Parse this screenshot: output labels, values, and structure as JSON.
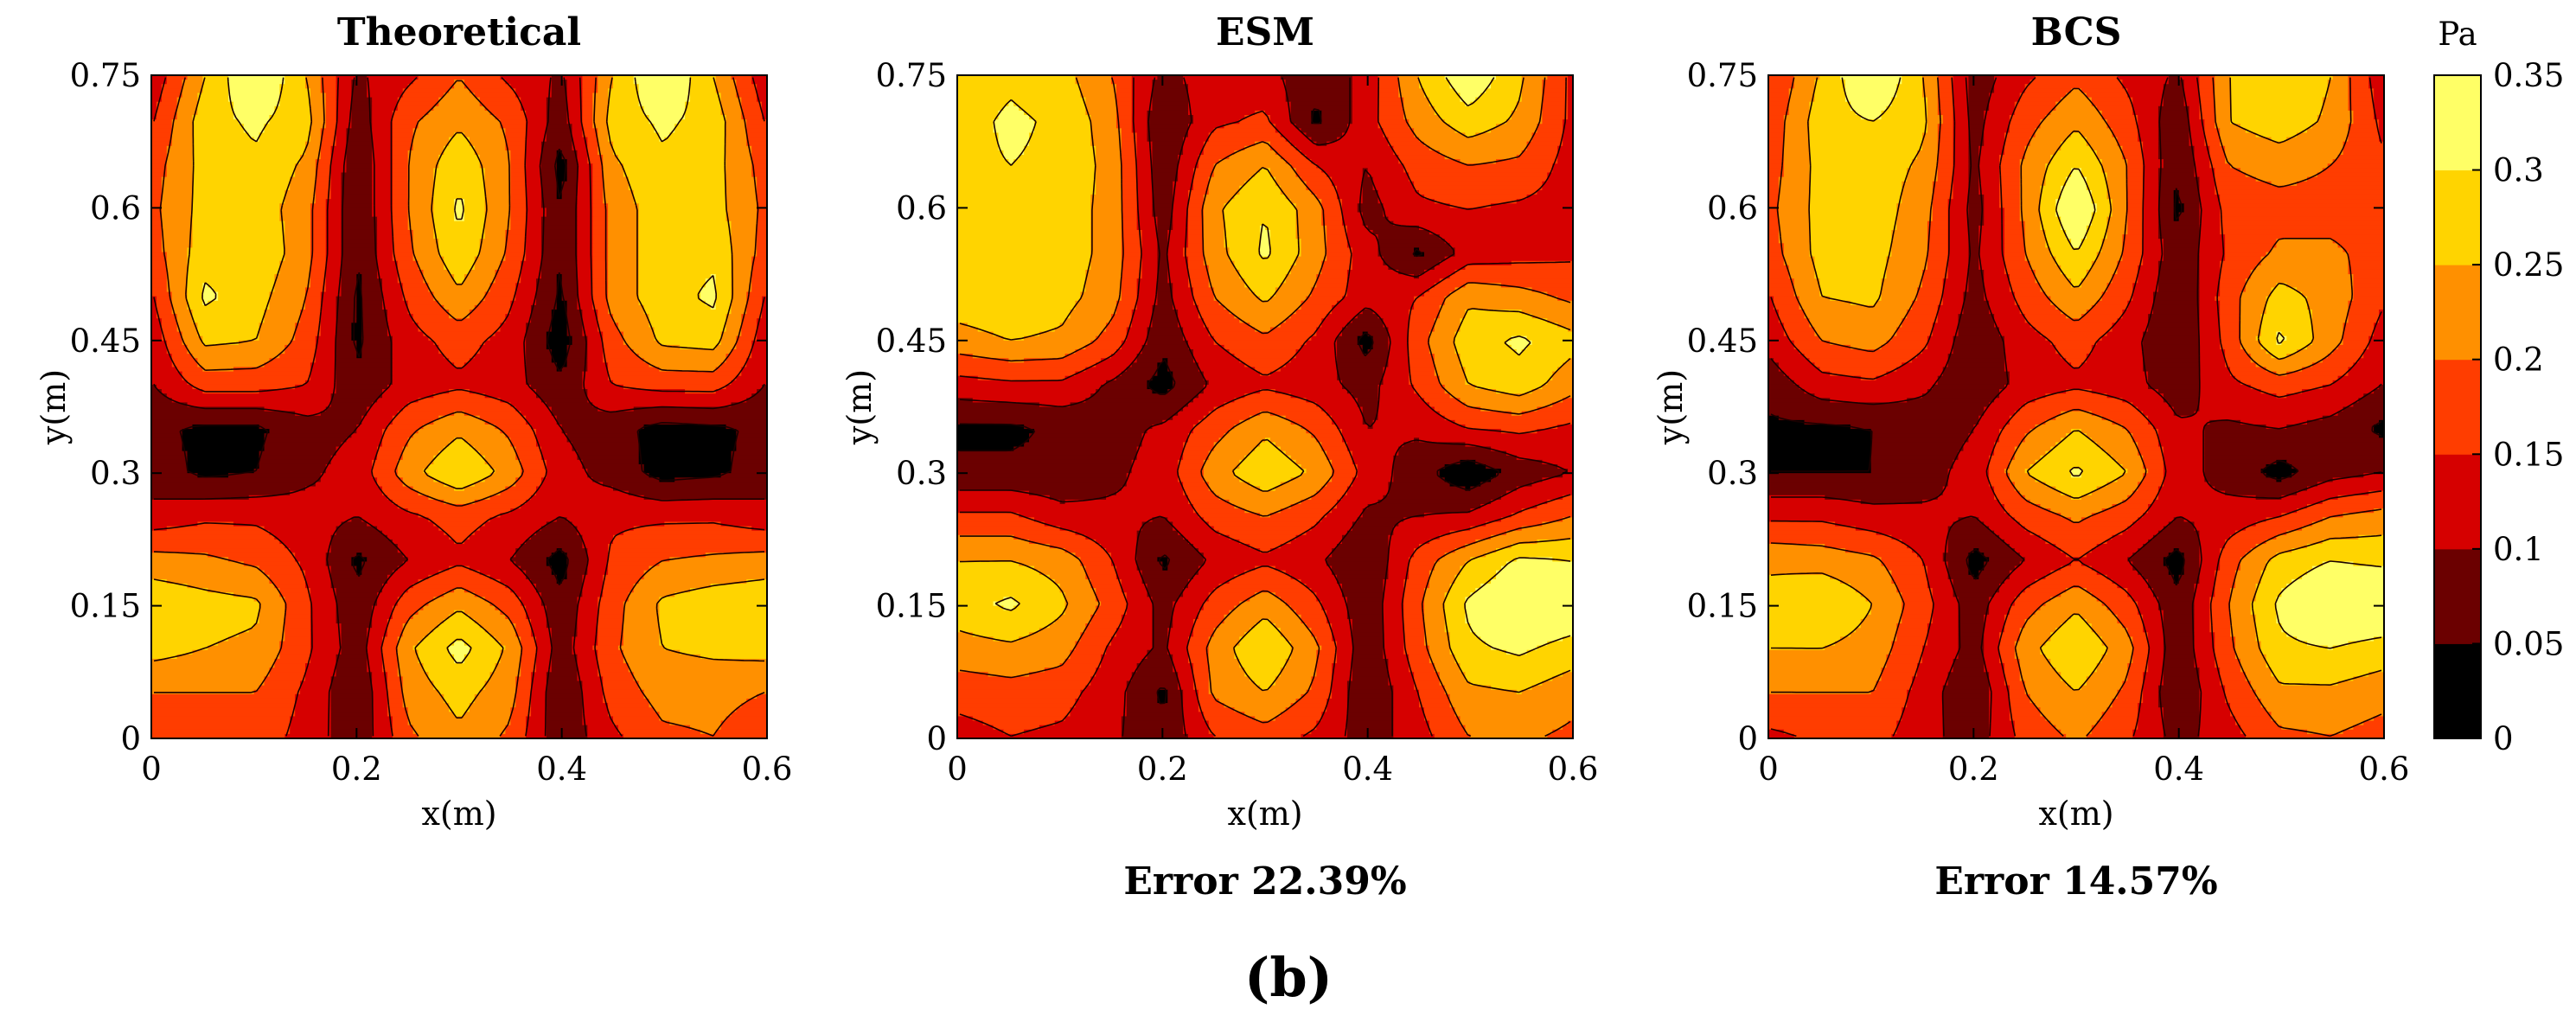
{
  "figure_label": "(b)",
  "colorbar": {
    "unit": "Pa",
    "min": 0,
    "max": 0.35,
    "ticks": [
      "0",
      "0.05",
      "0.1",
      "0.15",
      "0.2",
      "0.25",
      "0.3",
      "0.35"
    ],
    "levels": [
      0,
      0.05,
      0.1,
      0.15,
      0.2,
      0.25,
      0.3,
      0.35
    ],
    "colors": [
      "#000000",
      "#6b0000",
      "#d60000",
      "#ff3d00",
      "#ff9000",
      "#ffd400",
      "#ffff66",
      "#ffffff"
    ]
  },
  "chart_data": [
    {
      "type": "contour",
      "title": "Theoretical",
      "xlabel": "x(m)",
      "ylabel": "y(m)",
      "x": [
        0,
        0.05,
        0.1,
        0.15,
        0.2,
        0.25,
        0.3,
        0.35,
        0.4,
        0.45,
        0.5,
        0.55,
        0.6
      ],
      "y": [
        0.75,
        0.7,
        0.65,
        0.6,
        0.55,
        0.5,
        0.45,
        0.4,
        0.35,
        0.3,
        0.25,
        0.2,
        0.15,
        0.1,
        0.05,
        0
      ],
      "xticks": [
        "0",
        "0.2",
        "0.4",
        "0.6"
      ],
      "yticks": [
        "0",
        "0.15",
        "0.3",
        "0.45",
        "0.6",
        "0.75"
      ],
      "xlim": [
        0,
        0.6
      ],
      "ylim": [
        0,
        0.75
      ],
      "footer": "",
      "z": [
        [
          0.12,
          0.25,
          0.36,
          0.25,
          0.09,
          0.14,
          0.2,
          0.14,
          0.09,
          0.25,
          0.36,
          0.25,
          0.12
        ],
        [
          0.15,
          0.28,
          0.31,
          0.27,
          0.07,
          0.19,
          0.24,
          0.19,
          0.07,
          0.27,
          0.31,
          0.28,
          0.15
        ],
        [
          0.18,
          0.27,
          0.29,
          0.24,
          0.05,
          0.2,
          0.29,
          0.2,
          0.03,
          0.24,
          0.29,
          0.27,
          0.18
        ],
        [
          0.19,
          0.27,
          0.28,
          0.22,
          0.05,
          0.2,
          0.31,
          0.2,
          0.05,
          0.22,
          0.28,
          0.27,
          0.19
        ],
        [
          0.18,
          0.28,
          0.29,
          0.22,
          0.05,
          0.19,
          0.29,
          0.19,
          0.05,
          0.22,
          0.28,
          0.29,
          0.18
        ],
        [
          0.15,
          0.31,
          0.27,
          0.2,
          0.04,
          0.16,
          0.24,
          0.16,
          0.04,
          0.22,
          0.28,
          0.31,
          0.15
        ],
        [
          0.12,
          0.26,
          0.25,
          0.18,
          0.04,
          0.13,
          0.17,
          0.13,
          0.02,
          0.18,
          0.26,
          0.27,
          0.12
        ],
        [
          0.1,
          0.17,
          0.17,
          0.15,
          0.06,
          0.12,
          0.14,
          0.12,
          0.06,
          0.15,
          0.17,
          0.17,
          0.1
        ],
        [
          0.06,
          0.04,
          0.04,
          0.08,
          0.1,
          0.19,
          0.24,
          0.19,
          0.1,
          0.07,
          0.03,
          0.04,
          0.06
        ],
        [
          0.07,
          0.04,
          0.05,
          0.09,
          0.12,
          0.23,
          0.3,
          0.23,
          0.12,
          0.08,
          0.03,
          0.04,
          0.07
        ],
        [
          0.12,
          0.14,
          0.14,
          0.12,
          0.1,
          0.14,
          0.17,
          0.14,
          0.1,
          0.14,
          0.14,
          0.14,
          0.12
        ],
        [
          0.22,
          0.21,
          0.19,
          0.14,
          0.04,
          0.1,
          0.14,
          0.1,
          0.03,
          0.16,
          0.2,
          0.21,
          0.22
        ],
        [
          0.29,
          0.27,
          0.26,
          0.16,
          0.06,
          0.18,
          0.24,
          0.18,
          0.06,
          0.18,
          0.26,
          0.28,
          0.29
        ],
        [
          0.27,
          0.25,
          0.24,
          0.16,
          0.07,
          0.24,
          0.32,
          0.24,
          0.07,
          0.19,
          0.25,
          0.26,
          0.27
        ],
        [
          0.2,
          0.2,
          0.2,
          0.14,
          0.05,
          0.22,
          0.27,
          0.22,
          0.05,
          0.17,
          0.22,
          0.22,
          0.2
        ],
        [
          0.16,
          0.17,
          0.18,
          0.13,
          0.06,
          0.19,
          0.24,
          0.19,
          0.06,
          0.14,
          0.19,
          0.2,
          0.16
        ]
      ]
    },
    {
      "type": "contour",
      "title": "ESM",
      "xlabel": "x(m)",
      "ylabel": "y(m)",
      "x": [
        0,
        0.05,
        0.1,
        0.15,
        0.2,
        0.25,
        0.3,
        0.35,
        0.4,
        0.45,
        0.5,
        0.55,
        0.6
      ],
      "y": [
        0.75,
        0.7,
        0.65,
        0.6,
        0.55,
        0.5,
        0.45,
        0.4,
        0.35,
        0.3,
        0.25,
        0.2,
        0.15,
        0.1,
        0.05,
        0
      ],
      "xticks": [
        "0",
        "0.2",
        "0.4",
        "0.6"
      ],
      "yticks": [
        "0",
        "0.15",
        "0.3",
        "0.45",
        "0.6",
        "0.75"
      ],
      "xlim": [
        0,
        0.6
      ],
      "ylim": [
        0,
        0.75
      ],
      "footer": "Error 22.39%",
      "z": [
        [
          0.27,
          0.29,
          0.27,
          0.2,
          0.08,
          0.13,
          0.12,
          0.06,
          0.12,
          0.25,
          0.34,
          0.26,
          0.14
        ],
        [
          0.28,
          0.31,
          0.29,
          0.22,
          0.05,
          0.14,
          0.16,
          0.04,
          0.13,
          0.22,
          0.28,
          0.24,
          0.14
        ],
        [
          0.29,
          0.3,
          0.29,
          0.23,
          0.06,
          0.2,
          0.25,
          0.15,
          0.1,
          0.17,
          0.2,
          0.19,
          0.13
        ],
        [
          0.29,
          0.3,
          0.28,
          0.23,
          0.07,
          0.24,
          0.3,
          0.22,
          0.08,
          0.14,
          0.15,
          0.14,
          0.13
        ],
        [
          0.29,
          0.3,
          0.28,
          0.23,
          0.09,
          0.23,
          0.31,
          0.22,
          0.12,
          0.04,
          0.12,
          0.13,
          0.14
        ],
        [
          0.28,
          0.29,
          0.27,
          0.22,
          0.08,
          0.2,
          0.26,
          0.19,
          0.12,
          0.15,
          0.24,
          0.22,
          0.19
        ],
        [
          0.23,
          0.25,
          0.24,
          0.18,
          0.06,
          0.15,
          0.19,
          0.14,
          0.03,
          0.18,
          0.28,
          0.31,
          0.27
        ],
        [
          0.13,
          0.14,
          0.14,
          0.09,
          0.03,
          0.11,
          0.14,
          0.12,
          0.08,
          0.16,
          0.25,
          0.28,
          0.22
        ],
        [
          0.04,
          0.04,
          0.06,
          0.08,
          0.11,
          0.18,
          0.24,
          0.19,
          0.1,
          0.11,
          0.15,
          0.16,
          0.14
        ],
        [
          0.06,
          0.06,
          0.06,
          0.09,
          0.12,
          0.23,
          0.29,
          0.24,
          0.13,
          0.07,
          0.01,
          0.07,
          0.1
        ],
        [
          0.16,
          0.16,
          0.12,
          0.11,
          0.1,
          0.17,
          0.2,
          0.16,
          0.09,
          0.1,
          0.11,
          0.16,
          0.2
        ],
        [
          0.25,
          0.25,
          0.23,
          0.15,
          0.04,
          0.11,
          0.14,
          0.11,
          0.05,
          0.17,
          0.25,
          0.31,
          0.3
        ],
        [
          0.28,
          0.31,
          0.26,
          0.18,
          0.08,
          0.17,
          0.23,
          0.16,
          0.06,
          0.19,
          0.31,
          0.36,
          0.35
        ],
        [
          0.23,
          0.24,
          0.22,
          0.14,
          0.09,
          0.22,
          0.3,
          0.21,
          0.06,
          0.18,
          0.29,
          0.31,
          0.28
        ],
        [
          0.17,
          0.18,
          0.17,
          0.12,
          0.04,
          0.21,
          0.25,
          0.19,
          0.05,
          0.15,
          0.24,
          0.25,
          0.22
        ],
        [
          0.13,
          0.15,
          0.14,
          0.11,
          0.06,
          0.15,
          0.18,
          0.14,
          0.07,
          0.13,
          0.2,
          0.21,
          0.19
        ]
      ]
    },
    {
      "type": "contour",
      "title": "BCS",
      "xlabel": "x(m)",
      "ylabel": "y(m)",
      "x": [
        0,
        0.05,
        0.1,
        0.15,
        0.2,
        0.25,
        0.3,
        0.35,
        0.4,
        0.45,
        0.5,
        0.55,
        0.6
      ],
      "y": [
        0.75,
        0.7,
        0.65,
        0.6,
        0.55,
        0.5,
        0.45,
        0.4,
        0.35,
        0.3,
        0.25,
        0.2,
        0.15,
        0.1,
        0.05,
        0
      ],
      "xticks": [
        "0",
        "0.2",
        "0.4",
        "0.6"
      ],
      "yticks": [
        "0",
        "0.15",
        "0.3",
        "0.45",
        "0.6",
        "0.75"
      ],
      "xlim": [
        0,
        0.6
      ],
      "ylim": [
        0,
        0.75
      ],
      "footer": "Error 14.57%",
      "z": [
        [
          0.15,
          0.26,
          0.36,
          0.25,
          0.07,
          0.14,
          0.19,
          0.14,
          0.09,
          0.25,
          0.3,
          0.25,
          0.12
        ],
        [
          0.17,
          0.28,
          0.3,
          0.26,
          0.08,
          0.18,
          0.24,
          0.17,
          0.06,
          0.25,
          0.28,
          0.24,
          0.14
        ],
        [
          0.18,
          0.27,
          0.28,
          0.24,
          0.09,
          0.21,
          0.3,
          0.2,
          0.05,
          0.2,
          0.22,
          0.2,
          0.16
        ],
        [
          0.19,
          0.27,
          0.28,
          0.22,
          0.08,
          0.21,
          0.36,
          0.2,
          0.04,
          0.17,
          0.18,
          0.18,
          0.18
        ],
        [
          0.18,
          0.27,
          0.27,
          0.21,
          0.09,
          0.2,
          0.3,
          0.19,
          0.06,
          0.16,
          0.21,
          0.21,
          0.18
        ],
        [
          0.15,
          0.25,
          0.26,
          0.19,
          0.08,
          0.17,
          0.24,
          0.16,
          0.05,
          0.18,
          0.27,
          0.23,
          0.16
        ],
        [
          0.12,
          0.2,
          0.22,
          0.16,
          0.06,
          0.13,
          0.17,
          0.12,
          0.05,
          0.17,
          0.31,
          0.22,
          0.13
        ],
        [
          0.07,
          0.13,
          0.14,
          0.11,
          0.06,
          0.12,
          0.14,
          0.12,
          0.07,
          0.14,
          0.17,
          0.15,
          0.1
        ],
        [
          0.04,
          0.04,
          0.05,
          0.07,
          0.1,
          0.19,
          0.25,
          0.2,
          0.11,
          0.09,
          0.1,
          0.08,
          0.04
        ],
        [
          0.05,
          0.05,
          0.05,
          0.08,
          0.12,
          0.25,
          0.31,
          0.25,
          0.12,
          0.08,
          0.03,
          0.08,
          0.1
        ],
        [
          0.14,
          0.14,
          0.12,
          0.11,
          0.1,
          0.17,
          0.21,
          0.17,
          0.1,
          0.12,
          0.15,
          0.2,
          0.22
        ],
        [
          0.24,
          0.23,
          0.21,
          0.15,
          0.03,
          0.1,
          0.15,
          0.1,
          0.03,
          0.18,
          0.27,
          0.3,
          0.29
        ],
        [
          0.27,
          0.3,
          0.25,
          0.17,
          0.07,
          0.18,
          0.24,
          0.17,
          0.06,
          0.2,
          0.31,
          0.36,
          0.36
        ],
        [
          0.25,
          0.25,
          0.23,
          0.15,
          0.08,
          0.23,
          0.3,
          0.22,
          0.06,
          0.19,
          0.29,
          0.3,
          0.28
        ],
        [
          0.2,
          0.2,
          0.2,
          0.13,
          0.05,
          0.2,
          0.25,
          0.19,
          0.05,
          0.16,
          0.24,
          0.24,
          0.22
        ],
        [
          0.14,
          0.16,
          0.17,
          0.12,
          0.07,
          0.17,
          0.21,
          0.16,
          0.08,
          0.13,
          0.19,
          0.2,
          0.18
        ]
      ]
    }
  ]
}
